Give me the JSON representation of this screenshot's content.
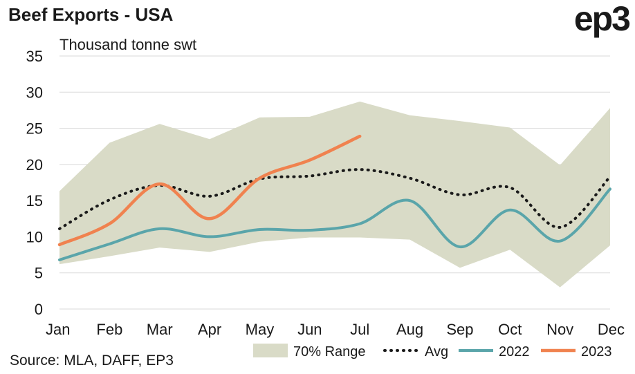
{
  "header": {
    "title": "Beef Exports - USA",
    "logo": "ep3",
    "unit_label": "Thousand tonne swt",
    "source": "Source: MLA, DAFF, EP3"
  },
  "colors": {
    "range": "#d9dbc7",
    "avg": "#1a1a1a",
    "s2022": "#5aa5aa",
    "s2023": "#f0824f",
    "grid": "#d9d9d9"
  },
  "chart_data": {
    "type": "line",
    "categories": [
      "Jan",
      "Feb",
      "Mar",
      "Apr",
      "May",
      "Jun",
      "Jul",
      "Aug",
      "Sep",
      "Oct",
      "Nov",
      "Dec"
    ],
    "ylim": [
      0,
      35
    ],
    "yticks": [
      0,
      5,
      10,
      15,
      20,
      25,
      30,
      35
    ],
    "grid": "horizontal",
    "legend_position": "bottom-right",
    "range": {
      "name": "70% Range",
      "upper": [
        16.3,
        23.0,
        25.6,
        23.5,
        26.5,
        26.6,
        28.7,
        26.8,
        26.0,
        25.1,
        19.9,
        27.8
      ],
      "lower": [
        6.2,
        7.3,
        8.5,
        7.9,
        9.3,
        9.9,
        9.9,
        9.6,
        5.7,
        8.2,
        3.0,
        8.8
      ]
    },
    "series": [
      {
        "name": "Avg",
        "values": [
          11.1,
          15.1,
          17.1,
          15.6,
          18.0,
          18.4,
          19.3,
          18.1,
          15.8,
          16.8,
          11.3,
          18.3
        ]
      },
      {
        "name": "2022",
        "values": [
          6.8,
          9.0,
          11.1,
          10.0,
          11.0,
          10.9,
          11.8,
          15.0,
          8.6,
          13.7,
          9.4,
          16.6
        ]
      },
      {
        "name": "2023",
        "values": [
          8.9,
          11.8,
          17.3,
          12.5,
          18.1,
          20.6,
          23.9,
          null,
          null,
          null,
          null,
          null
        ]
      }
    ]
  }
}
